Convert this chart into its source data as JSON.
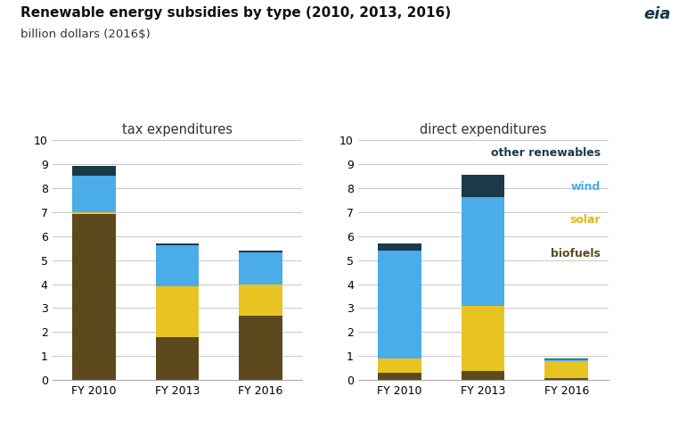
{
  "title_line1": "Renewable energy subsidies by type (2010, 2013, 2016)",
  "title_line2": "billion dollars (2016Ⓢ)",
  "left_subtitle": "tax expenditures",
  "right_subtitle": "direct expenditures",
  "years": [
    "FY 2010",
    "FY 2013",
    "FY 2016"
  ],
  "colors": {
    "biofuels": "#5C4A1E",
    "solar": "#E8C422",
    "wind": "#4AACE8",
    "other": "#1A3A4A"
  },
  "tax": {
    "biofuels": [
      6.9,
      1.8,
      2.7
    ],
    "solar": [
      0.1,
      2.1,
      1.3
    ],
    "wind": [
      1.5,
      1.7,
      1.3
    ],
    "other": [
      0.4,
      0.1,
      0.1
    ]
  },
  "direct": {
    "biofuels": [
      0.3,
      0.4,
      0.1
    ],
    "solar": [
      0.6,
      2.7,
      0.7
    ],
    "wind": [
      4.5,
      4.5,
      0.05
    ],
    "other": [
      0.3,
      0.95,
      0.05
    ]
  },
  "ylim": [
    0,
    10
  ],
  "yticks": [
    0,
    1,
    2,
    3,
    4,
    5,
    6,
    7,
    8,
    9,
    10
  ],
  "bg_color": "#FFFFFF",
  "grid_color": "#C8C8C8",
  "legend_labels": [
    "other renewables",
    "wind",
    "solar",
    "biofuels"
  ],
  "legend_text_colors": [
    "#1A3A4A",
    "#4AACE8",
    "#E8B800",
    "#5C4A1E"
  ],
  "title_fontsize": 11,
  "subtitle_fontsize": 10.5,
  "tick_fontsize": 9,
  "legend_fontsize": 9
}
